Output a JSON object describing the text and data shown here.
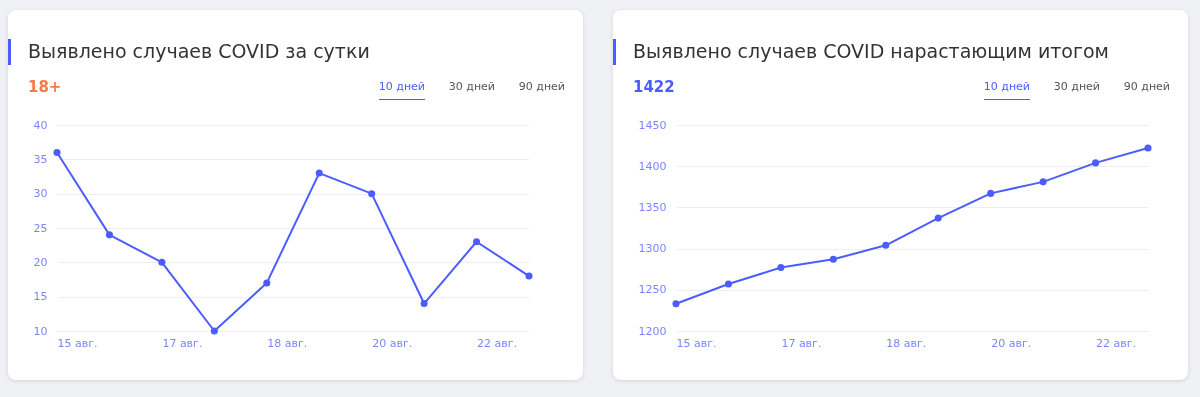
{
  "chart_data": [
    {
      "type": "line",
      "title": "Выявлено случаев COVID за сутки",
      "annotations": [
        "18+",
        "10 дней",
        "30 дней",
        "90 дней"
      ],
      "categories": [
        "15 авг.",
        null,
        "17 авг.",
        null,
        "18 авг.",
        null,
        "20 авг.",
        null,
        "22 авг.",
        null
      ],
      "series": [
        {
          "color": "#4c5dff",
          "values": [
            36,
            24,
            20,
            10,
            17,
            33,
            30,
            14,
            23,
            18
          ]
        }
      ],
      "ylim": [
        10,
        40
      ],
      "yticks": [
        10,
        15,
        20,
        25,
        30,
        35,
        40
      ],
      "grid": "y",
      "marker": "circle",
      "line_style": "solid"
    },
    {
      "type": "line",
      "title": "Выявлено случаев COVID нарастающим итогом",
      "annotations": [
        "1422",
        "10 дней",
        "30 дней",
        "90 дней"
      ],
      "categories": [
        "15 авг.",
        null,
        "17 авг.",
        null,
        "18 авг.",
        null,
        "20 авг.",
        null,
        "22 авг.",
        null
      ],
      "series": [
        {
          "color": "#4c5dff",
          "values": [
            1233,
            1257,
            1277,
            1287,
            1304,
            1337,
            1367,
            1381,
            1404,
            1422
          ]
        }
      ],
      "ylim": [
        1200,
        1450
      ],
      "yticks": [
        1200,
        1250,
        1300,
        1350,
        1400,
        1450
      ],
      "grid": "y",
      "marker": "circle",
      "line_style": "solid"
    }
  ]
}
